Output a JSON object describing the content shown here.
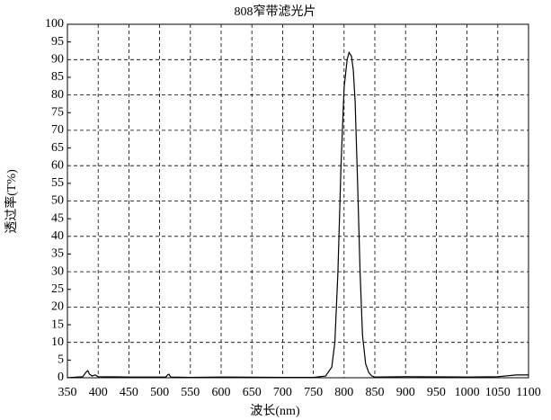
{
  "chart_data": {
    "type": "line",
    "title": "808窄带滤光片",
    "x_label": "波长(nm)",
    "y_label": "透过率(T%)",
    "xlim": [
      350,
      1100
    ],
    "ylim": [
      0,
      100
    ],
    "xticks": [
      350,
      400,
      450,
      500,
      550,
      600,
      650,
      700,
      750,
      800,
      850,
      900,
      950,
      1000,
      1050,
      1100
    ],
    "yticks": [
      0,
      5,
      10,
      15,
      20,
      25,
      30,
      35,
      40,
      45,
      50,
      55,
      60,
      65,
      70,
      75,
      80,
      85,
      90,
      95,
      100
    ],
    "grid": true,
    "series": [
      {
        "color": "#000000",
        "x": [
          350,
          375,
          380,
          383,
          386,
          390,
          395,
          400,
          450,
          510,
          513,
          515,
          518,
          550,
          600,
          700,
          750,
          770,
          780,
          785,
          790,
          795,
          800,
          805,
          808,
          812,
          815,
          818,
          822,
          826,
          830,
          835,
          840,
          845,
          850,
          900,
          1000,
          1050,
          1080,
          1100
        ],
        "values": [
          0,
          0.3,
          1.5,
          2,
          1,
          0.5,
          0.8,
          0.3,
          0.2,
          0.2,
          0.8,
          1,
          0.2,
          0.1,
          0.2,
          0.1,
          0.1,
          0.5,
          3,
          10,
          30,
          60,
          82,
          90,
          92,
          91,
          87,
          78,
          55,
          30,
          12,
          4,
          1.5,
          0.5,
          0.2,
          0.3,
          0.2,
          0.3,
          0.8,
          0.8
        ]
      }
    ]
  }
}
